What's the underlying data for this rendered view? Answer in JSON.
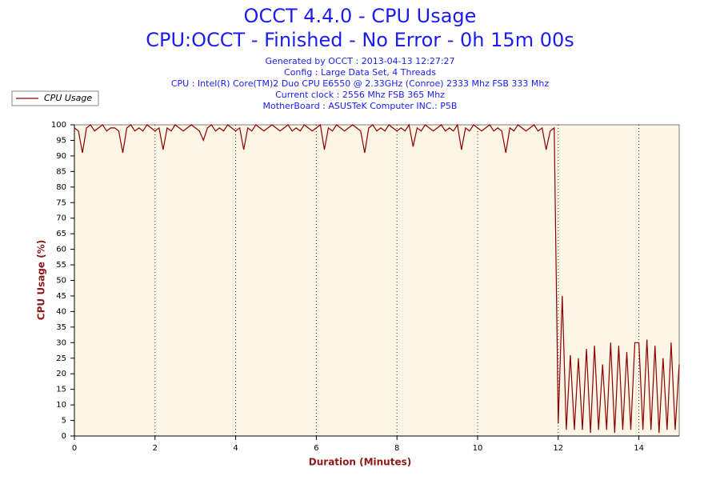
{
  "chart_data": {
    "type": "line",
    "title": "OCCT 4.4.0 - CPU Usage",
    "subtitle": "CPU:OCCT - Finished - No Error - 0h 15m 00s",
    "annotations": [
      "Generated by OCCT : 2013-04-13 12:27:27",
      "Config : Large Data Set, 4 Threads",
      "CPU : Intel(R) Core(TM)2 Duo CPU E6550 @ 2.33GHz (Conroe) 2333 Mhz FSB 333 Mhz",
      "Current clock : 2556 Mhz FSB 365 Mhz",
      "MotherBoard : ASUSTeK Computer INC.: P5B"
    ],
    "x_label": "Duration (Minutes)",
    "y_label": "CPU Usage (%)",
    "xlim": [
      0,
      15
    ],
    "ylim": [
      0,
      100
    ],
    "xticks": [
      0,
      2,
      4,
      6,
      8,
      10,
      12,
      14
    ],
    "yticks": [
      0,
      5,
      10,
      15,
      20,
      25,
      30,
      35,
      40,
      45,
      50,
      55,
      60,
      65,
      70,
      75,
      80,
      85,
      90,
      95,
      100
    ],
    "grid": true,
    "legend": "top-left",
    "x": [
      0,
      0.1,
      0.2,
      0.3,
      0.4,
      0.5,
      0.6,
      0.7,
      0.8,
      0.9,
      1,
      1.1,
      1.2,
      1.3,
      1.4,
      1.5,
      1.6,
      1.7,
      1.8,
      1.9,
      2,
      2.1,
      2.2,
      2.3,
      2.4,
      2.5,
      2.6,
      2.7,
      2.8,
      2.9,
      3,
      3.1,
      3.2,
      3.3,
      3.4,
      3.5,
      3.6,
      3.7,
      3.8,
      3.9,
      4,
      4.1,
      4.2,
      4.3,
      4.4,
      4.5,
      4.6,
      4.7,
      4.8,
      4.9,
      5,
      5.1,
      5.2,
      5.3,
      5.4,
      5.5,
      5.6,
      5.7,
      5.8,
      5.9,
      6,
      6.1,
      6.2,
      6.3,
      6.4,
      6.5,
      6.6,
      6.7,
      6.8,
      6.9,
      7,
      7.1,
      7.2,
      7.3,
      7.4,
      7.5,
      7.6,
      7.7,
      7.8,
      7.9,
      8,
      8.1,
      8.2,
      8.3,
      8.4,
      8.5,
      8.6,
      8.7,
      8.8,
      8.9,
      9,
      9.1,
      9.2,
      9.3,
      9.4,
      9.5,
      9.6,
      9.7,
      9.8,
      9.9,
      10,
      10.1,
      10.2,
      10.3,
      10.4,
      10.5,
      10.6,
      10.7,
      10.8,
      10.9,
      11,
      11.1,
      11.2,
      11.3,
      11.4,
      11.5,
      11.6,
      11.7,
      11.8,
      11.9,
      12,
      12.1,
      12.2,
      12.3,
      12.4,
      12.5,
      12.6,
      12.7,
      12.8,
      12.9,
      13,
      13.1,
      13.2,
      13.3,
      13.4,
      13.5,
      13.6,
      13.7,
      13.8,
      13.9,
      14,
      14.1,
      14.2,
      14.3,
      14.4,
      14.5,
      14.6,
      14.7,
      14.8,
      14.9,
      15
    ],
    "series": [
      {
        "name": "CPU Usage",
        "color": "#8b0000",
        "values": [
          99,
          98,
          91,
          99,
          100,
          98,
          99,
          100,
          98,
          99,
          99,
          98,
          91,
          99,
          100,
          98,
          99,
          98,
          100,
          99,
          98,
          99,
          92,
          99,
          98,
          100,
          99,
          98,
          99,
          100,
          99,
          98,
          95,
          99,
          100,
          98,
          99,
          98,
          100,
          99,
          98,
          99,
          92,
          99,
          98,
          100,
          99,
          98,
          99,
          100,
          99,
          98,
          99,
          100,
          98,
          99,
          98,
          100,
          99,
          98,
          99,
          100,
          92,
          99,
          98,
          100,
          99,
          98,
          99,
          100,
          99,
          98,
          91,
          99,
          100,
          98,
          99,
          98,
          100,
          99,
          98,
          99,
          98,
          100,
          93,
          99,
          98,
          100,
          99,
          98,
          99,
          100,
          98,
          99,
          98,
          100,
          92,
          99,
          98,
          100,
          99,
          98,
          99,
          100,
          98,
          99,
          98,
          91,
          99,
          98,
          100,
          99,
          98,
          99,
          100,
          98,
          99,
          92,
          98,
          99,
          4,
          45,
          2,
          26,
          2,
          25,
          2,
          28,
          1,
          29,
          2,
          23,
          2,
          30,
          1,
          29,
          2,
          27,
          2,
          30,
          30,
          2,
          31,
          2,
          29,
          1,
          25,
          2,
          30,
          2,
          23
        ]
      }
    ]
  }
}
